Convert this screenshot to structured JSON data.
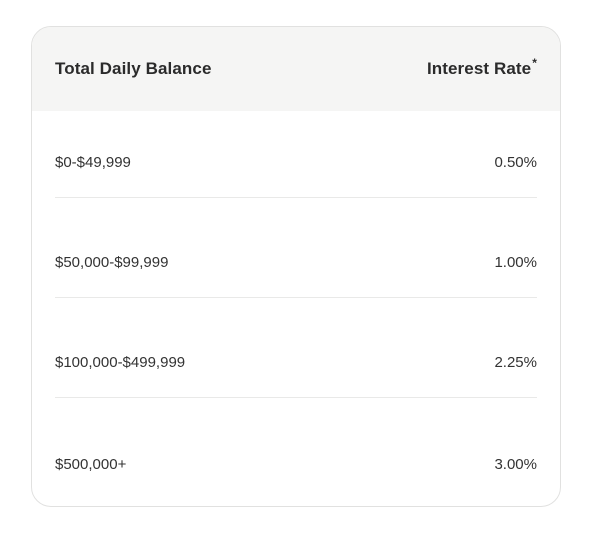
{
  "table": {
    "header": {
      "balance_label": "Total Daily Balance",
      "rate_label": "Interest Rate",
      "rate_footnote_marker": "*"
    },
    "rows": [
      {
        "balance": "$0-$49,999",
        "rate": "0.50%"
      },
      {
        "balance": "$50,000-$99,999",
        "rate": "1.00%"
      },
      {
        "balance": "$100,000-$499,999",
        "rate": "2.25%"
      },
      {
        "balance": "$500,000+",
        "rate": "3.00%"
      }
    ],
    "colors": {
      "header_bg": "#f5f5f4",
      "card_border": "#e1e1e0",
      "divider": "#e9e9e8",
      "header_text": "#2b2b2b",
      "row_text": "#333333",
      "card_bg": "#ffffff",
      "page_bg": "#ffffff"
    }
  }
}
